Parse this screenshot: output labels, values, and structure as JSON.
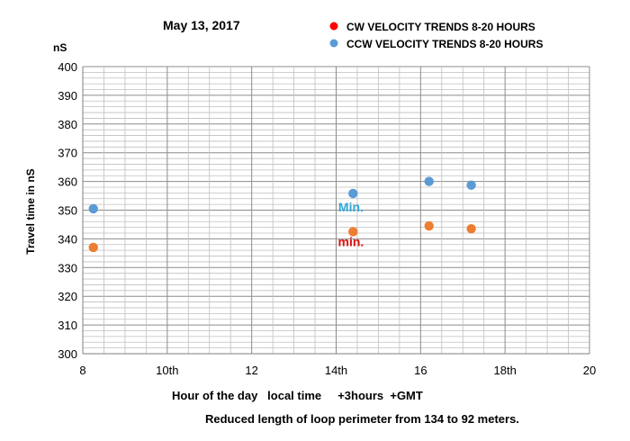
{
  "chart_data": {
    "type": "scatter",
    "date": "May 13, 2017",
    "y_unit": "nS",
    "ylabel": "Travel time in nS",
    "xlabel": "Hour of the day   local time     +3hours  +GMT",
    "footnote": "Reduced length of loop perimeter from 134 to 92 meters.",
    "xlim": [
      8,
      20
    ],
    "ylim": [
      300,
      400
    ],
    "y_major_step": 10,
    "y_minor_step": 2,
    "x_major_step": 2,
    "x_minor_step": 0.5,
    "x_ticks": [
      {
        "value": 8,
        "label": "8"
      },
      {
        "value": 10,
        "label": "10th"
      },
      {
        "value": 12,
        "label": "12"
      },
      {
        "value": 14,
        "label": "14th"
      },
      {
        "value": 16,
        "label": "16"
      },
      {
        "value": 18,
        "label": "18th"
      },
      {
        "value": 20,
        "label": "20"
      }
    ],
    "y_ticks": [
      300,
      310,
      320,
      330,
      340,
      350,
      360,
      370,
      380,
      390,
      400
    ],
    "legend_position": "top-right",
    "series": [
      {
        "name": "CW VELOCITY TRENDS 8-20 HOURS",
        "color": "#ed7d31",
        "legend_color": "#ff0000",
        "marker": "circle",
        "x": [
          8.25,
          14.4,
          16.2,
          17.2
        ],
        "y": [
          337,
          342.5,
          344.5,
          343.5
        ]
      },
      {
        "name": "CCW VELOCITY TRENDS 8-20 HOURS",
        "color": "#5b9bd5",
        "legend_color": "#5b9bd5",
        "marker": "circle",
        "x": [
          8.25,
          14.4,
          16.2,
          17.2
        ],
        "y": [
          350.5,
          355.8,
          360,
          358.7
        ]
      }
    ],
    "annotations": [
      {
        "text": "Min.",
        "x": 14.35,
        "y": 349.5,
        "color": "#2ea8d8"
      },
      {
        "text": "min.",
        "x": 14.35,
        "y": 337.5,
        "color": "#e01010"
      }
    ]
  }
}
